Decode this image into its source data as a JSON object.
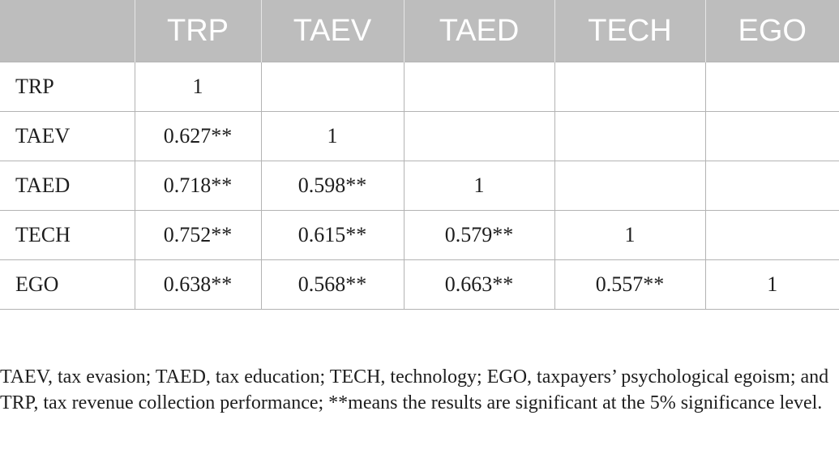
{
  "table": {
    "headers": [
      "",
      "TRP",
      "TAEV",
      "TAED",
      "TECH",
      "EGO"
    ],
    "rows": [
      {
        "label": "TRP",
        "cells": [
          "1",
          "",
          "",
          "",
          ""
        ]
      },
      {
        "label": "TAEV",
        "cells": [
          "0.627**",
          "1",
          "",
          "",
          ""
        ]
      },
      {
        "label": "TAED",
        "cells": [
          "0.718**",
          "0.598**",
          "1",
          "",
          ""
        ]
      },
      {
        "label": "TECH",
        "cells": [
          "0.752**",
          "0.615**",
          "0.579**",
          "1",
          ""
        ]
      },
      {
        "label": "EGO",
        "cells": [
          "0.638**",
          "0.568**",
          "0.663**",
          "0.557**",
          "1"
        ]
      }
    ]
  },
  "note": "TAEV, tax evasion; TAED, tax education; TECH, technology; EGO, taxpayers’ psychological egoism; and TRP, tax revenue collection performance; **means the results are significant at the 5% significance level.",
  "colors": {
    "header_background": "#bdbdbd",
    "header_text": "#ffffff",
    "grid_lines": "#b3b3b3",
    "body_text": "#1e1e1e"
  }
}
